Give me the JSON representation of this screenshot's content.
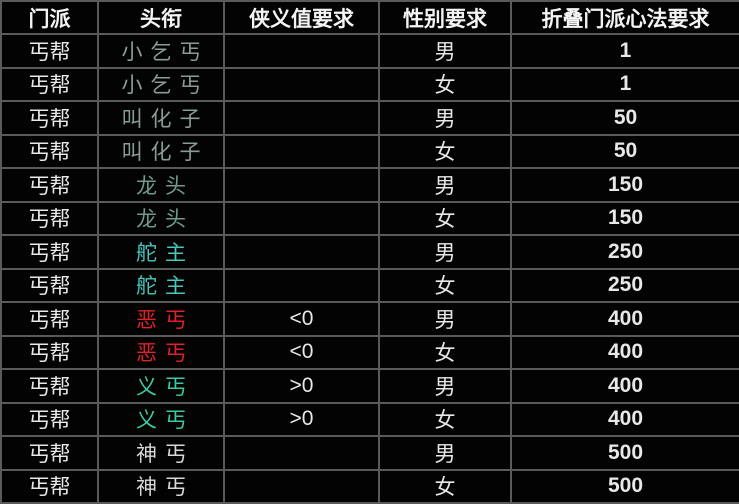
{
  "headers": [
    "门派",
    "头衔",
    "侠义值要求",
    "性别要求",
    "折叠门派心法要求"
  ],
  "title_colors": {
    "小乞丐": "#8a9c96",
    "叫化子": "#8a9c96",
    "龙头": "#6f9a8c",
    "舵主": "#48c8bc",
    "恶丐": "#e0202a",
    "义丐": "#3cc8a0",
    "神丐": "#d8d8d8"
  },
  "rows": [
    {
      "sect": "丐帮",
      "title": "小乞丐",
      "chivalry": "",
      "gender": "男",
      "skill": "1"
    },
    {
      "sect": "丐帮",
      "title": "小乞丐",
      "chivalry": "",
      "gender": "女",
      "skill": "1"
    },
    {
      "sect": "丐帮",
      "title": "叫化子",
      "chivalry": "",
      "gender": "男",
      "skill": "50"
    },
    {
      "sect": "丐帮",
      "title": "叫化子",
      "chivalry": "",
      "gender": "女",
      "skill": "50"
    },
    {
      "sect": "丐帮",
      "title": "龙头",
      "chivalry": "",
      "gender": "男",
      "skill": "150"
    },
    {
      "sect": "丐帮",
      "title": "龙头",
      "chivalry": "",
      "gender": "女",
      "skill": "150"
    },
    {
      "sect": "丐帮",
      "title": "舵主",
      "chivalry": "",
      "gender": "男",
      "skill": "250"
    },
    {
      "sect": "丐帮",
      "title": "舵主",
      "chivalry": "",
      "gender": "女",
      "skill": "250"
    },
    {
      "sect": "丐帮",
      "title": "恶丐",
      "chivalry": "<0",
      "gender": "男",
      "skill": "400"
    },
    {
      "sect": "丐帮",
      "title": "恶丐",
      "chivalry": "<0",
      "gender": "女",
      "skill": "400"
    },
    {
      "sect": "丐帮",
      "title": "义丐",
      "chivalry": ">0",
      "gender": "男",
      "skill": "400"
    },
    {
      "sect": "丐帮",
      "title": "义丐",
      "chivalry": ">0",
      "gender": "女",
      "skill": "400"
    },
    {
      "sect": "丐帮",
      "title": "神丐",
      "chivalry": "",
      "gender": "男",
      "skill": "500"
    },
    {
      "sect": "丐帮",
      "title": "神丐",
      "chivalry": "",
      "gender": "女",
      "skill": "500"
    }
  ]
}
